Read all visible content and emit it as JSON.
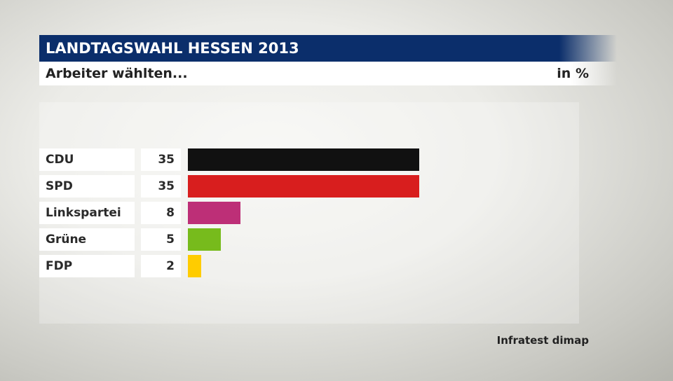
{
  "title": "LANDTAGSWAHL HESSEN 2013",
  "subtitle": "Arbeiter wählten...",
  "unit": "in %",
  "source": "Infratest dimap",
  "chart_data": {
    "type": "bar",
    "orientation": "horizontal",
    "categories": [
      "CDU",
      "SPD",
      "Linkspartei",
      "Grüne",
      "FDP"
    ],
    "values": [
      35,
      35,
      8,
      5,
      2
    ],
    "colors": [
      "#111111",
      "#d81e1e",
      "#bd2f77",
      "#77bb1c",
      "#ffcc00"
    ],
    "title": "Arbeiter wählten...",
    "grid": false
  }
}
